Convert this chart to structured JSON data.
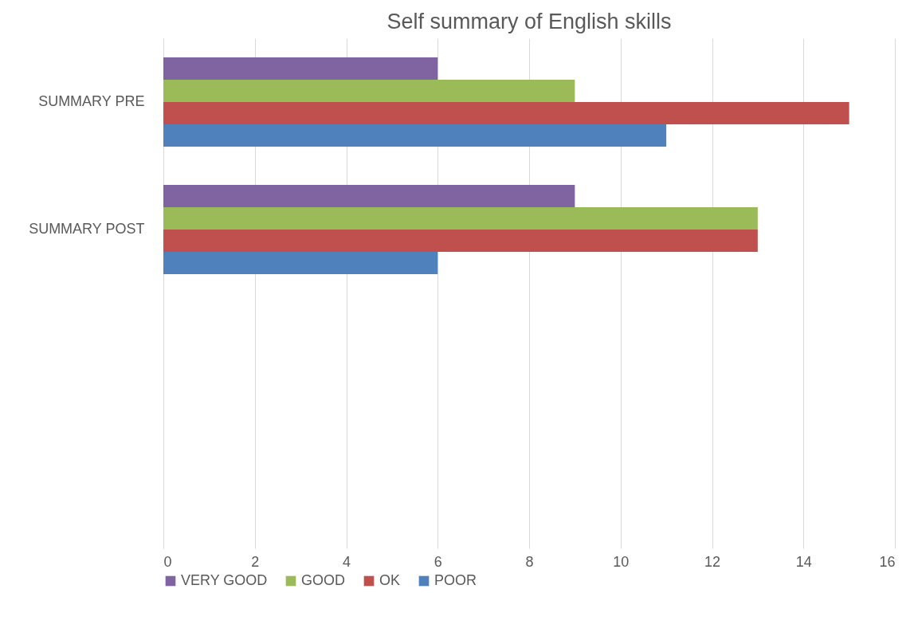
{
  "chart_data": {
    "type": "bar",
    "orientation": "horizontal",
    "title": "Self summary of English skills",
    "categories": [
      "SUMMARY PRE",
      "SUMMARY POST",
      null,
      null
    ],
    "series": [
      {
        "name": "VERY GOOD",
        "color": "#8064a2",
        "values": [
          6,
          9,
          null,
          null
        ]
      },
      {
        "name": "GOOD",
        "color": "#9bbb59",
        "values": [
          9,
          13,
          null,
          null
        ]
      },
      {
        "name": "OK",
        "color": "#c0504d",
        "values": [
          15,
          13,
          null,
          null
        ]
      },
      {
        "name": "POOR",
        "color": "#4f81bd",
        "values": [
          11,
          6,
          null,
          null
        ]
      }
    ],
    "xlim": [
      0,
      16
    ],
    "xticks": [
      0,
      2,
      4,
      6,
      8,
      10,
      12,
      14,
      16
    ],
    "grid": "x",
    "legend": "bottom"
  }
}
